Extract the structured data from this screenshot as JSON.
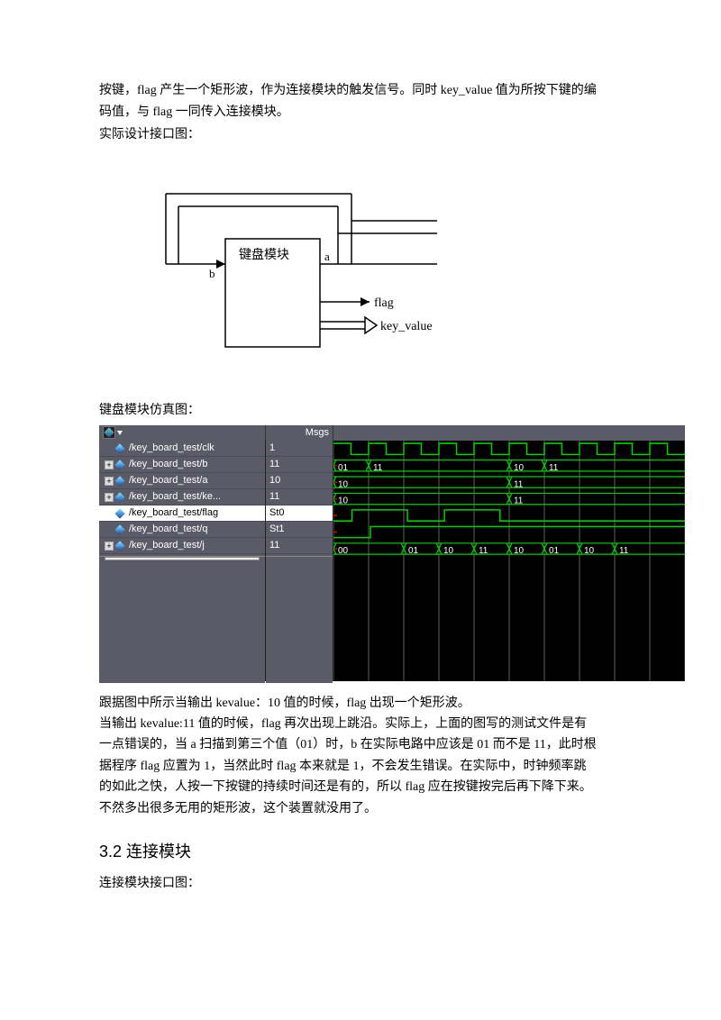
{
  "intro": {
    "p1": "按键，flag 产生一个矩形波，作为连接模块的触发信号。同时 key_value 值为所按下键的编",
    "p2": "码值，与 flag 一同传入连接模块。",
    "p3": "实际设计接口图："
  },
  "blockDiagram": {
    "module_label": "键盘模块",
    "port_b": "b",
    "port_a": "a",
    "port_flag": "flag",
    "port_keyvalue": "key_value",
    "stroke": "#000000",
    "box_fill": "#ffffff"
  },
  "sim_section_title": "键盘模块仿真图：",
  "waveform": {
    "header_msgs": "Msgs",
    "bg": "#000000",
    "panel_bg": "#5b5b68",
    "text_color": "#ffffff",
    "wave_green": "#00d000",
    "wave_red": "#d00000",
    "grid_gray": "#606060",
    "signals": [
      {
        "name": "/key_board_test/clk",
        "msg": "1",
        "expand": false
      },
      {
        "name": "/key_board_test/b",
        "msg": "11",
        "expand": true
      },
      {
        "name": "/key_board_test/a",
        "msg": "10",
        "expand": true
      },
      {
        "name": "/key_board_test/ke...",
        "msg": "11",
        "expand": true
      },
      {
        "name": "/key_board_test/flag",
        "msg": "St0",
        "expand": false,
        "selected": true
      },
      {
        "name": "/key_board_test/q",
        "msg": "St1",
        "expand": false
      },
      {
        "name": "/key_board_test/j",
        "msg": "11",
        "expand": true
      }
    ],
    "time_divisions": 10,
    "row_b_values": [
      "01",
      "11",
      "",
      "",
      "",
      "10",
      "11",
      "",
      "",
      ""
    ],
    "row_a_values": [
      "10",
      "",
      "",
      "",
      "",
      "11",
      "",
      "",
      "",
      ""
    ],
    "row_ke_values": [
      "10",
      "",
      "",
      "",
      "",
      "11",
      "",
      "",
      "",
      ""
    ],
    "row_j_values": [
      "00",
      "",
      "01",
      "10",
      "11",
      "10",
      "01",
      "10",
      "11",
      ""
    ],
    "clk_pattern": "HLHLHLHLHLHLHLHLHLHL",
    "flag_pattern": [
      0,
      1,
      1,
      1,
      0,
      0,
      1,
      1,
      1,
      0,
      0,
      0,
      0,
      0,
      0,
      0,
      0,
      0,
      0
    ],
    "q_pattern": [
      0,
      0,
      1,
      1,
      1,
      1,
      1,
      1,
      1,
      1,
      1,
      1,
      1,
      1,
      1,
      1,
      1,
      1,
      1
    ]
  },
  "analysis": {
    "p1": "跟据图中所示当输出 kevalue：10 值的时候，flag 出现一个矩形波。",
    "p2": "当输出 kevalue:11 值的时候，flag 再次出现上跳沿。实际上，上面的图写的测试文件是有",
    "p3": "一点错误的，当 a 扫描到第三个值（01）时，b 在实际电路中应该是 01 而不是 11，此时根",
    "p4": "据程序 flag 应置为 1，当然此时 flag 本来就是 1，不会发生错误。在实际中，时钟频率跳",
    "p5": "的如此之快，人按一下按键的持续时间还是有的，所以 flag 应在按键按完后再下降下来。",
    "p6": "不然多出很多无用的矩形波，这个装置就没用了。"
  },
  "section2": {
    "title": "3.2 连接模块",
    "sub": "连接模块接口图："
  }
}
